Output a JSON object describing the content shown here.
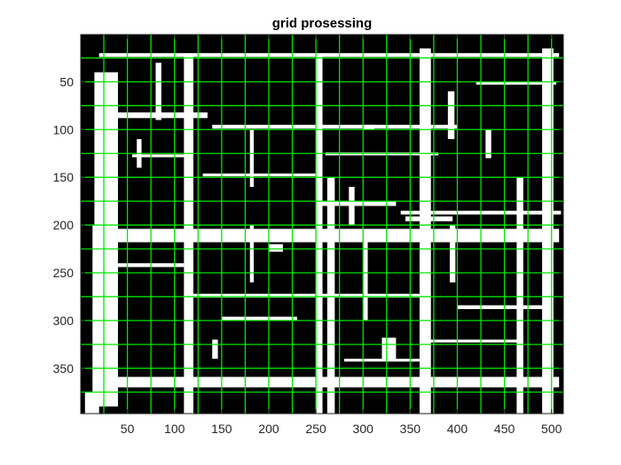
{
  "chart_data": {
    "type": "heatmap",
    "title": "grid prosessing",
    "xlabel": "",
    "ylabel": "",
    "xlim": [
      0.5,
      512.5
    ],
    "ylim": [
      0.5,
      397.5
    ],
    "y_reversed": true,
    "x_ticks": [
      50,
      100,
      150,
      200,
      250,
      300,
      350,
      400,
      450,
      500
    ],
    "y_ticks": [
      50,
      100,
      150,
      200,
      250,
      300,
      350
    ],
    "grid": false,
    "background_color": "#000000",
    "foreground_color": "#ffffff",
    "overlay_color": "#00e600",
    "overlay_lines": {
      "vertical_x": [
        25,
        50,
        75,
        100,
        125,
        150,
        175,
        200,
        225,
        250,
        275,
        300,
        325,
        350,
        375,
        400,
        425,
        450,
        475,
        500
      ],
      "horizontal_y": [
        25,
        50,
        75,
        100,
        125,
        150,
        175,
        200,
        225,
        250,
        275,
        300,
        325,
        350,
        375
      ]
    },
    "white_segments": [
      {
        "x": [
          20,
          508
        ],
        "y": [
          20,
          24
        ]
      },
      {
        "x": [
          25,
          508
        ],
        "y": [
          204,
          218
        ]
      },
      {
        "x": [
          15,
          508
        ],
        "y": [
          359,
          370
        ]
      },
      {
        "x": [
          110,
          360
        ],
        "y": [
          272,
          276
        ]
      },
      {
        "x": [
          40,
          135
        ],
        "y": [
          82,
          88
        ]
      },
      {
        "x": [
          140,
          400
        ],
        "y": [
          95,
          99
        ]
      },
      {
        "x": [
          250,
          335
        ],
        "y": [
          175,
          180
        ]
      },
      {
        "x": [
          280,
          360
        ],
        "y": [
          340,
          343
        ]
      },
      {
        "x": [
          150,
          230
        ],
        "y": [
          296,
          300
        ]
      },
      {
        "x": [
          20,
          110
        ],
        "y": [
          240,
          244
        ]
      },
      {
        "x": [
          400,
          500
        ],
        "y": [
          284,
          288
        ]
      },
      {
        "x": [
          130,
          255
        ],
        "y": [
          146,
          149
        ]
      },
      {
        "x": [
          365,
          470
        ],
        "y": [
          320,
          323
        ]
      },
      {
        "x": [
          340,
          510
        ],
        "y": [
          185,
          189
        ]
      },
      {
        "x": [
          260,
          380
        ],
        "y": [
          124,
          127
        ]
      },
      {
        "x": [
          420,
          505
        ],
        "y": [
          50,
          53
        ]
      },
      {
        "x": [
          55,
          120
        ],
        "y": [
          126,
          129
        ]
      },
      {
        "x": [
          345,
          395
        ],
        "y": [
          191,
          196
        ]
      },
      {
        "x": [
          15,
          40
        ],
        "y": [
          40,
          390
        ]
      },
      {
        "x": [
          13,
          19
        ],
        "y": [
          200,
          390
        ]
      },
      {
        "x": [
          110,
          120
        ],
        "y": [
          20,
          397
        ]
      },
      {
        "x": [
          250,
          257
        ],
        "y": [
          20,
          397
        ]
      },
      {
        "x": [
          262,
          270
        ],
        "y": [
          150,
          397
        ]
      },
      {
        "x": [
          360,
          372
        ],
        "y": [
          15,
          397
        ]
      },
      {
        "x": [
          392,
          398
        ],
        "y": [
          200,
          260
        ]
      },
      {
        "x": [
          490,
          502
        ],
        "y": [
          15,
          397
        ]
      },
      {
        "x": [
          463,
          470
        ],
        "y": [
          150,
          397
        ]
      },
      {
        "x": [
          80,
          86
        ],
        "y": [
          30,
          90
        ]
      },
      {
        "x": [
          300,
          305
        ],
        "y": [
          210,
          300
        ]
      },
      {
        "x": [
          180,
          184
        ],
        "y": [
          200,
          260
        ]
      },
      {
        "x": [
          180,
          184
        ],
        "y": [
          100,
          160
        ]
      },
      {
        "x": [
          5,
          20
        ],
        "y": [
          375,
          397
        ]
      },
      {
        "x": [
          320,
          335
        ],
        "y": [
          318,
          340
        ]
      },
      {
        "x": [
          390,
          397
        ],
        "y": [
          60,
          110
        ]
      },
      {
        "x": [
          285,
          291
        ],
        "y": [
          160,
          200
        ]
      },
      {
        "x": [
          200,
          215
        ],
        "y": [
          220,
          228
        ]
      },
      {
        "x": [
          300,
          312
        ],
        "y": [
          95,
          100
        ]
      },
      {
        "x": [
          60,
          65
        ],
        "y": [
          110,
          140
        ]
      },
      {
        "x": [
          140,
          146
        ],
        "y": [
          320,
          340
        ]
      },
      {
        "x": [
          430,
          436
        ],
        "y": [
          100,
          130
        ]
      }
    ]
  }
}
